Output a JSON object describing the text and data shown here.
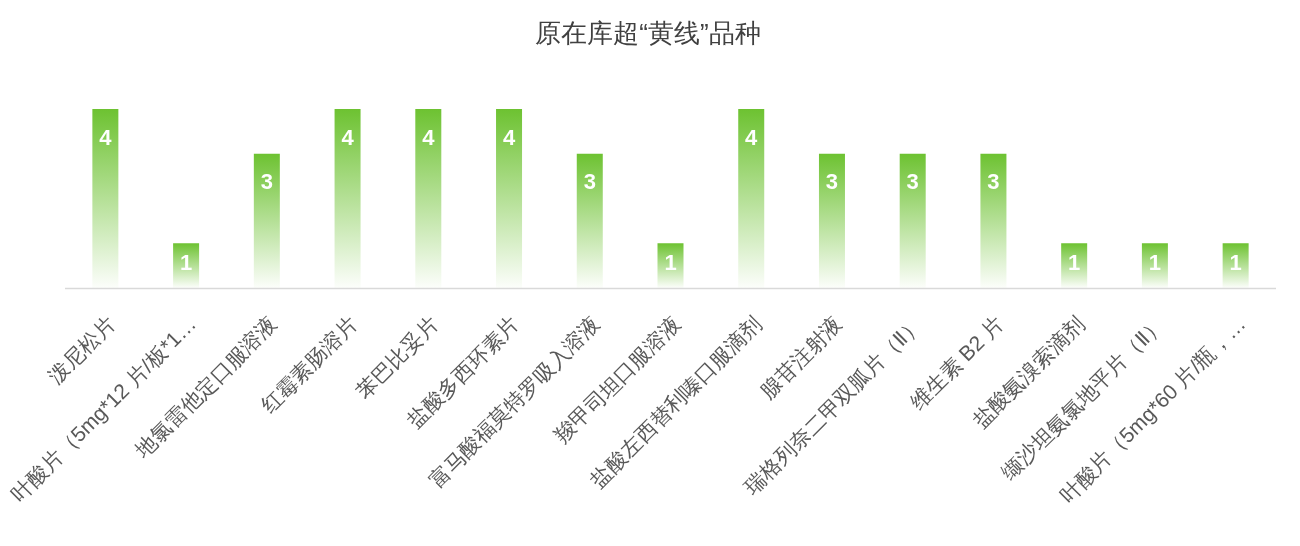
{
  "chart_data": {
    "type": "bar",
    "title": "原在库超“黄线”品种",
    "categories": [
      "泼尼松片",
      "叶酸片（5mg*12 片/板*1…",
      "地氯雷他定口服溶液",
      "红霉素肠溶片",
      "苯巴比妥片",
      "盐酸多西环素片",
      "富马酸福莫特罗吸入溶液",
      "羧甲司坦口服溶液",
      "盐酸左西替利嗪口服滴剂",
      "腺苷注射液",
      "瑞格列奈二甲双胍片（Ⅱ）",
      "维生素 B2 片",
      "盐酸氨溴索滴剂",
      "缬沙坦氨氯地平片（Ⅱ）",
      "叶酸片（5mg*60 片/瓶，…"
    ],
    "values": [
      4,
      1,
      3,
      4,
      4,
      4,
      3,
      1,
      4,
      3,
      3,
      3,
      1,
      1,
      1
    ],
    "color": "#6dc231",
    "data_labels": true
  }
}
